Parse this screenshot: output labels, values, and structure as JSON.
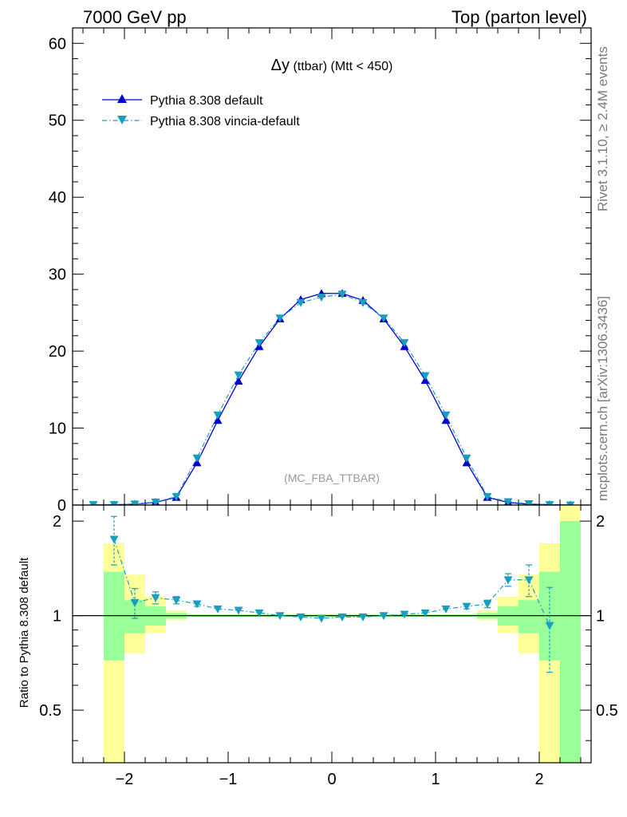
{
  "header": {
    "left": "7000 GeV pp",
    "right": "Top (parton level)"
  },
  "side_labels": {
    "rivet": "Rivet 3.1.10, ≥ 2.4M events",
    "mcplots": "mcplots.cern.ch [arXiv:1306.3436]"
  },
  "chart_data": [
    {
      "type": "line",
      "title": "Δy (ttbar) (Mtt < 450)",
      "title_main": "Δy",
      "title_sub": "(ttbar) (Mtt < 450)",
      "watermark": "(MC_FBA_TTBAR)",
      "xlabel": "",
      "ylabel": "",
      "xlim": [
        -2.5,
        2.5
      ],
      "ylim": [
        0,
        62
      ],
      "x_ticks": [
        -2,
        -1,
        0,
        1,
        2
      ],
      "y_ticks": [
        0,
        10,
        20,
        30,
        40,
        50,
        60
      ],
      "x_tick_labels": [
        "−2",
        "−1",
        "0",
        "1",
        "2"
      ],
      "y_tick_labels": [
        "0",
        "10",
        "20",
        "30",
        "40",
        "50",
        "60"
      ],
      "legend_position": "top-left",
      "x": [
        -2.3,
        -2.1,
        -1.9,
        -1.7,
        -1.5,
        -1.3,
        -1.1,
        -0.9,
        -0.7,
        -0.5,
        -0.3,
        -0.1,
        0.1,
        0.3,
        0.5,
        0.7,
        0.9,
        1.1,
        1.3,
        1.5,
        1.7,
        1.9,
        2.1,
        2.3
      ],
      "series": [
        {
          "name": "Pythia 8.308 default",
          "color": "#0000cc",
          "marker": "triangle-up",
          "line": "solid",
          "values": [
            0.0,
            0.03,
            0.12,
            0.35,
            1.0,
            5.5,
            11.0,
            16.1,
            20.6,
            24.2,
            26.7,
            27.5,
            27.5,
            26.6,
            24.2,
            20.6,
            16.2,
            11.0,
            5.5,
            1.0,
            0.33,
            0.12,
            0.05,
            0.0
          ]
        },
        {
          "name": "Pythia 8.308 vincia-default",
          "color": "#1a9ebf",
          "marker": "triangle-down",
          "line": "dash-dot",
          "values": [
            0.05,
            0.05,
            0.13,
            0.39,
            1.1,
            6.1,
            11.7,
            16.9,
            21.1,
            24.3,
            26.3,
            27.0,
            27.4,
            26.3,
            24.3,
            21.1,
            16.8,
            11.7,
            6.1,
            1.1,
            0.43,
            0.16,
            0.05,
            0.0
          ]
        }
      ]
    },
    {
      "type": "line",
      "title": "",
      "ylabel": "Ratio to Pythia 8.308 default",
      "xlim": [
        -2.5,
        2.5
      ],
      "ylim": [
        0.34,
        2.25
      ],
      "y_scale": "log",
      "x_ticks": [
        -2,
        -1,
        0,
        1,
        2
      ],
      "x_tick_labels": [
        "−2",
        "−1",
        "0",
        "1",
        "2"
      ],
      "y_ticks": [
        0.5,
        1,
        2
      ],
      "y_tick_labels": [
        "0.5",
        "1",
        "2"
      ],
      "x": [
        -2.1,
        -1.9,
        -1.7,
        -1.5,
        -1.3,
        -1.1,
        -0.9,
        -0.7,
        -0.5,
        -0.3,
        -0.1,
        0.1,
        0.3,
        0.5,
        0.7,
        0.9,
        1.1,
        1.3,
        1.5,
        1.7,
        1.9,
        2.1
      ],
      "series": [
        {
          "name": "Pythia 8.308 vincia-default",
          "color": "#1a9ebf",
          "marker": "triangle-down",
          "values": [
            1.75,
            1.1,
            1.14,
            1.12,
            1.09,
            1.05,
            1.04,
            1.02,
            1.0,
            0.99,
            0.98,
            0.99,
            0.99,
            1.0,
            1.01,
            1.02,
            1.05,
            1.07,
            1.09,
            1.3,
            1.3,
            0.93
          ],
          "err_up": [
            0.32,
            0.12,
            0.05,
            0.03,
            0.02,
            0.01,
            0.01,
            0.01,
            0.01,
            0.01,
            0.01,
            0.01,
            0.01,
            0.01,
            0.01,
            0.01,
            0.01,
            0.02,
            0.03,
            0.06,
            0.15,
            0.3
          ],
          "err_down": [
            0.3,
            0.12,
            0.05,
            0.03,
            0.02,
            0.01,
            0.01,
            0.01,
            0.01,
            0.01,
            0.01,
            0.01,
            0.01,
            0.01,
            0.01,
            0.01,
            0.01,
            0.02,
            0.03,
            0.06,
            0.15,
            0.27
          ]
        }
      ],
      "bands": {
        "edges": [
          -2.2,
          -2.0,
          -1.8,
          -1.6,
          -1.4,
          1.4,
          1.6,
          1.8,
          2.0,
          2.2,
          2.4
        ],
        "inner": {
          "color": "#99ff99",
          "low": [
            0.72,
            0.88,
            0.93,
            0.98,
            0.995,
            0.98,
            0.93,
            0.88,
            0.72,
            0.3
          ],
          "high": [
            1.38,
            1.12,
            1.07,
            1.02,
            1.005,
            1.02,
            1.07,
            1.12,
            1.38,
            2.0
          ]
        },
        "outer": {
          "color": "#ffff99",
          "low": [
            0.3,
            0.76,
            0.88,
            0.97,
            0.99,
            0.97,
            0.88,
            0.76,
            0.3,
            0.3
          ],
          "high": [
            1.7,
            1.35,
            1.15,
            1.04,
            1.01,
            1.04,
            1.15,
            1.35,
            1.7,
            3.0
          ]
        }
      }
    }
  ]
}
